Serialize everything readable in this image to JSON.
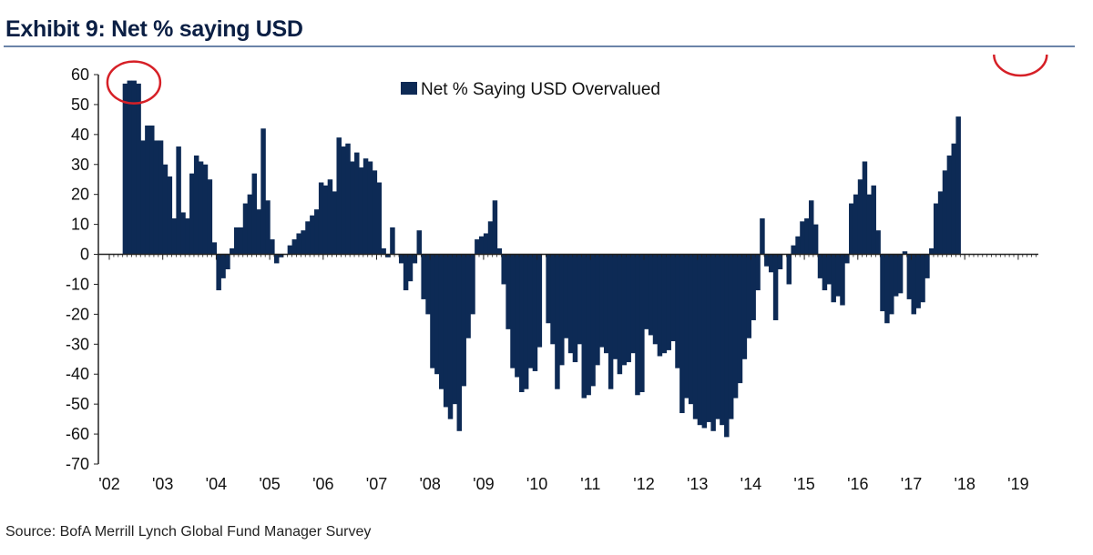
{
  "title": "Exhibit 9: Net % saying USD",
  "source": "Source:  BofA Merrill Lynch Global Fund Manager Survey",
  "colors": {
    "bar": "#0d2a55",
    "highlight_circle": "#d62027",
    "title_rule": "#6b84a8"
  },
  "chart_data": {
    "type": "bar",
    "title": "",
    "xlabel": "",
    "ylabel": "",
    "ylim": [
      -70,
      60
    ],
    "y_ticks": [
      "60",
      "50",
      "40",
      "30",
      "20",
      "10",
      "0",
      "-10",
      "-20",
      "-30",
      "-40",
      "-50",
      "-60",
      "-70"
    ],
    "x_tick_labels": [
      "'02",
      "'03",
      "'04",
      "'05",
      "'06",
      "'07",
      "'08",
      "'09",
      "'10",
      "'11",
      "'12",
      "'13",
      "'14",
      "'15",
      "'16",
      "'17",
      "'18",
      "'19"
    ],
    "x_start_year": 2002,
    "x_end_year": 2019,
    "legend": {
      "entries": [
        "Net % Saying USD Overvalued"
      ],
      "placement": "top-center"
    },
    "grid": false,
    "highlighted_months": [
      "2002-06",
      "2019-01"
    ],
    "series": [
      {
        "name": "Net % Saying USD Overvalued",
        "start": "2002-04",
        "frequency": "monthly",
        "values": [
          57,
          58,
          58,
          57,
          38,
          43,
          43,
          38,
          38,
          30,
          26,
          12,
          36,
          14,
          12,
          27,
          33,
          31,
          30,
          25,
          4,
          -12,
          -8,
          -5,
          2,
          9,
          9,
          17,
          20,
          27,
          15,
          42,
          18,
          5,
          -3,
          -1,
          0,
          3,
          5,
          7,
          8,
          11,
          13,
          15,
          24,
          23,
          25,
          21,
          39,
          36,
          37,
          31,
          34,
          29,
          32,
          31,
          28,
          24,
          2,
          -1,
          9,
          0,
          -3,
          -12,
          -9,
          -3,
          8,
          -15,
          -20,
          -38,
          -40,
          -45,
          -51,
          -55,
          -50,
          -59,
          -44,
          -28,
          -20,
          5,
          6,
          7,
          11,
          18,
          2,
          -10,
          -25,
          -38,
          -41,
          -46,
          -45,
          -38,
          -39,
          -31,
          0,
          -23,
          -30,
          -45,
          -37,
          -28,
          -33,
          -36,
          -30,
          -48,
          -47,
          -44,
          -37,
          -31,
          -33,
          -45,
          -35,
          -40,
          -37,
          -36,
          -33,
          -47,
          -46,
          -25,
          -27,
          -30,
          -34,
          -33,
          -32,
          -29,
          -38,
          -53,
          -48,
          -50,
          -55,
          -57,
          -58,
          -56,
          -59,
          -55,
          -57,
          -61,
          -55,
          -48,
          -43,
          -35,
          -28,
          -22,
          -12,
          12,
          -4,
          -6,
          -22,
          -5,
          0,
          -10,
          3,
          6,
          11,
          12,
          18,
          10,
          -8,
          -12,
          -10,
          -16,
          -14,
          -17,
          -3,
          17,
          20,
          25,
          31,
          20,
          23,
          8,
          -19,
          -23,
          -20,
          -14,
          -13,
          1,
          -15,
          -20,
          -18,
          -16,
          -8,
          2,
          17,
          21,
          28,
          33,
          37,
          46
        ]
      }
    ]
  }
}
